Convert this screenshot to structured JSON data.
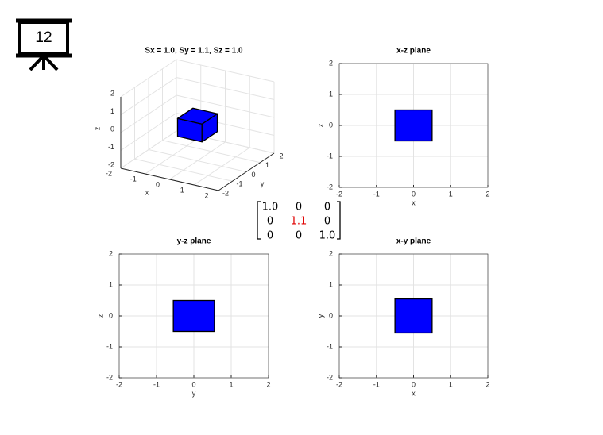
{
  "slide_number": "12",
  "matrix": {
    "rows": [
      [
        "1.0",
        "0",
        "0"
      ],
      [
        "0",
        "1.1",
        "0"
      ],
      [
        "0",
        "0",
        "1.0"
      ]
    ],
    "highlight": [
      1,
      1
    ],
    "highlight_color": "#e00000"
  },
  "chart_data": [
    {
      "type": "box3d",
      "title": "Sx = 1.0, Sy = 1.1, Sz = 1.0",
      "xlabel": "x",
      "ylabel": "y",
      "zlabel": "z",
      "xlim": [
        -2,
        2
      ],
      "ylim": [
        -2,
        2
      ],
      "zlim": [
        -2,
        2
      ],
      "xticks": [
        -2,
        -1,
        0,
        1,
        2
      ],
      "yticks": [
        -2,
        -1,
        0,
        1,
        2
      ],
      "zticks": [
        -2,
        -1,
        0,
        1,
        2
      ],
      "box": {
        "x": [
          -0.5,
          0.5
        ],
        "y": [
          -0.55,
          0.55
        ],
        "z": [
          -0.5,
          0.5
        ]
      },
      "color": "#0000ff",
      "grid": true
    },
    {
      "type": "rect",
      "title": "x-z plane",
      "xlabel": "x",
      "ylabel": "z",
      "xlim": [
        -2,
        2
      ],
      "ylim": [
        -2,
        2
      ],
      "xticks": [
        -2,
        -1,
        0,
        1,
        2
      ],
      "yticks": [
        -2,
        -1,
        0,
        1,
        2
      ],
      "rect": {
        "x": [
          -0.5,
          0.5
        ],
        "y": [
          -0.5,
          0.5
        ]
      },
      "color": "#0000ff",
      "grid": true
    },
    {
      "type": "rect",
      "title": "y-z plane",
      "xlabel": "y",
      "ylabel": "z",
      "xlim": [
        -2,
        2
      ],
      "ylim": [
        -2,
        2
      ],
      "xticks": [
        -2,
        -1,
        0,
        1,
        2
      ],
      "yticks": [
        -2,
        -1,
        0,
        1,
        2
      ],
      "rect": {
        "x": [
          -0.55,
          0.55
        ],
        "y": [
          -0.5,
          0.5
        ]
      },
      "color": "#0000ff",
      "grid": true
    },
    {
      "type": "rect",
      "title": "x-y plane",
      "xlabel": "x",
      "ylabel": "y",
      "xlim": [
        -2,
        2
      ],
      "ylim": [
        -2,
        2
      ],
      "xticks": [
        -2,
        -1,
        0,
        1,
        2
      ],
      "yticks": [
        -2,
        -1,
        0,
        1,
        2
      ],
      "rect": {
        "x": [
          -0.5,
          0.5
        ],
        "y": [
          -0.55,
          0.55
        ]
      },
      "color": "#0000ff",
      "grid": true
    }
  ]
}
